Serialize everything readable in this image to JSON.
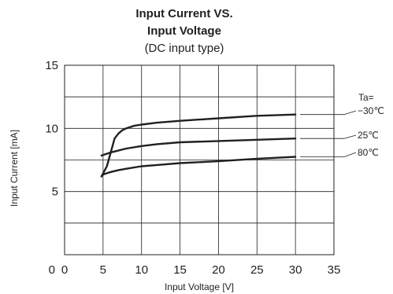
{
  "chart_data": {
    "type": "line",
    "title": "Input Current VS.",
    "title_line2": "Input Voltage",
    "subtitle": "(DC input type)",
    "xlabel": "Input Voltage [V]",
    "ylabel": "Input Current [mA]",
    "xlim": [
      0,
      35
    ],
    "ylim": [
      0,
      15
    ],
    "x_ticks": [
      "0",
      "5",
      "10",
      "15",
      "20",
      "25",
      "30",
      "35"
    ],
    "x_tick_values": [
      0,
      5,
      10,
      15,
      20,
      25,
      30,
      35
    ],
    "y_ticks": [
      "0",
      "5",
      "10",
      "15"
    ],
    "y_tick_values": [
      0,
      5,
      10,
      15
    ],
    "x_grid_values": [
      5,
      10,
      15,
      20,
      25,
      30
    ],
    "y_grid_values": [
      2.5,
      5,
      7.5,
      10,
      12.5
    ],
    "grid": true,
    "legend_title": "Ta=",
    "legend_placement": "right",
    "series": [
      {
        "name": "−30℃",
        "x": [
          4.8,
          5.5,
          6.0,
          6.5,
          7.0,
          7.5,
          8.0,
          9.0,
          10.0,
          12.0,
          15.0,
          20.0,
          25.0,
          30.0
        ],
        "y": [
          6.2,
          7.0,
          8.1,
          9.2,
          9.6,
          9.85,
          10.0,
          10.2,
          10.3,
          10.45,
          10.6,
          10.8,
          11.0,
          11.1
        ]
      },
      {
        "name": "25℃",
        "x": [
          4.8,
          6.0,
          8.0,
          10.0,
          12.0,
          15.0,
          20.0,
          25.0,
          30.0
        ],
        "y": [
          7.85,
          8.1,
          8.4,
          8.6,
          8.75,
          8.9,
          9.0,
          9.1,
          9.2
        ]
      },
      {
        "name": "80℃",
        "x": [
          4.8,
          5.0,
          5.5,
          6.0,
          7.0,
          8.0,
          10.0,
          12.0,
          15.0,
          20.0,
          25.0,
          30.0
        ],
        "y": [
          6.2,
          6.35,
          6.45,
          6.55,
          6.7,
          6.8,
          7.0,
          7.1,
          7.25,
          7.4,
          7.6,
          7.75
        ]
      }
    ]
  }
}
